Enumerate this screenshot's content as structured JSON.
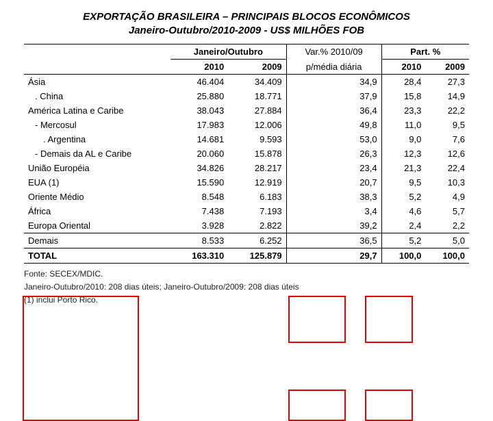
{
  "title_line1": "EXPORTAÇÃO BRASILEIRA – PRINCIPAIS BLOCOS ECONÔMICOS",
  "title_line2": "Janeiro-Outubro/2010-2009 - US$ MILHÕES FOB",
  "headers": {
    "grp1": "Janeiro/Outubro",
    "grp2_a": "Var.% 2010/09",
    "grp2_b": "p/média diária",
    "grp3": "Part. %",
    "y2010": "2010",
    "y2009": "2009"
  },
  "rows": [
    {
      "label": "Ásia",
      "v2010": "46.404",
      "v2009": "34.409",
      "var": "34,9",
      "p2010": "28,4",
      "p2009": "27,3",
      "cls": ""
    },
    {
      "label": ". China",
      "v2010": "25.880",
      "v2009": "18.771",
      "var": "37,9",
      "p2010": "15,8",
      "p2009": "14,9",
      "cls": "sub"
    },
    {
      "label": "América Latina e Caribe",
      "v2010": "38.043",
      "v2009": "27.884",
      "var": "36,4",
      "p2010": "23,3",
      "p2009": "22,2",
      "cls": ""
    },
    {
      "label": "- Mercosul",
      "v2010": "17.983",
      "v2009": "12.006",
      "var": "49,8",
      "p2010": "11,0",
      "p2009": "9,5",
      "cls": "sub"
    },
    {
      "label": ". Argentina",
      "v2010": "14.681",
      "v2009": "9.593",
      "var": "53,0",
      "p2010": "9,0",
      "p2009": "7,6",
      "cls": "sub2"
    },
    {
      "label": "- Demais da AL e Caribe",
      "v2010": "20.060",
      "v2009": "15.878",
      "var": "26,3",
      "p2010": "12,3",
      "p2009": "12,6",
      "cls": "sub"
    },
    {
      "label": "União Européia",
      "v2010": "34.826",
      "v2009": "28.217",
      "var": "23,4",
      "p2010": "21,3",
      "p2009": "22,4",
      "cls": ""
    },
    {
      "label": "EUA (1)",
      "v2010": "15.590",
      "v2009": "12.919",
      "var": "20,7",
      "p2010": "9,5",
      "p2009": "10,3",
      "cls": ""
    },
    {
      "label": "Oriente Médio",
      "v2010": "8.548",
      "v2009": "6.183",
      "var": "38,3",
      "p2010": "5,2",
      "p2009": "4,9",
      "cls": ""
    },
    {
      "label": "África",
      "v2010": "7.438",
      "v2009": "7.193",
      "var": "3,4",
      "p2010": "4,6",
      "p2009": "5,7",
      "cls": ""
    },
    {
      "label": "Europa Oriental",
      "v2010": "3.928",
      "v2009": "2.822",
      "var": "39,2",
      "p2010": "2,4",
      "p2009": "2,2",
      "cls": ""
    }
  ],
  "demais": {
    "label": "Demais",
    "v2010": "8.533",
    "v2009": "6.252",
    "var": "36,5",
    "p2010": "5,2",
    "p2009": "5,0"
  },
  "total": {
    "label": "TOTAL",
    "v2010": "163.310",
    "v2009": "125.879",
    "var": "29,7",
    "p2010": "100,0",
    "p2009": "100,0"
  },
  "footnotes": {
    "f1": "Fonte: SECEX/MDIC.",
    "f2": "Janeiro-Outubro/2010: 208 dias úteis; Janeiro-Outubro/2009: 208 dias úteis",
    "f3": "(1) inclui Porto Rico."
  },
  "highlight_color": "#e40000"
}
